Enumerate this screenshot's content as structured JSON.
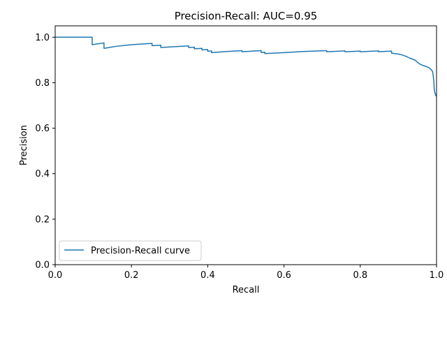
{
  "chart_data": {
    "type": "line",
    "title": "Precision-Recall: AUC=0.95",
    "xlabel": "Recall",
    "ylabel": "Precision",
    "xlim": [
      0.0,
      1.0
    ],
    "ylim": [
      0.0,
      1.05
    ],
    "xticks": [
      "0.0",
      "0.2",
      "0.4",
      "0.6",
      "0.8",
      "1.0"
    ],
    "yticks": [
      "0.0",
      "0.2",
      "0.4",
      "0.6",
      "0.8",
      "1.0"
    ],
    "grid": false,
    "legend_position": "lower-left",
    "series": [
      {
        "name": "Precision-Recall curve",
        "color": "#1f77b4",
        "step": true,
        "points": [
          [
            0.0,
            1.0
          ],
          [
            0.097,
            1.0
          ],
          [
            0.097,
            0.967
          ],
          [
            0.128,
            0.975
          ],
          [
            0.128,
            0.951
          ],
          [
            0.16,
            0.96
          ],
          [
            0.2,
            0.967
          ],
          [
            0.254,
            0.973
          ],
          [
            0.254,
            0.963
          ],
          [
            0.277,
            0.965
          ],
          [
            0.277,
            0.955
          ],
          [
            0.32,
            0.959
          ],
          [
            0.35,
            0.962
          ],
          [
            0.35,
            0.955
          ],
          [
            0.365,
            0.956
          ],
          [
            0.365,
            0.949
          ],
          [
            0.385,
            0.951
          ],
          [
            0.385,
            0.944
          ],
          [
            0.4,
            0.946
          ],
          [
            0.4,
            0.938
          ],
          [
            0.41,
            0.94
          ],
          [
            0.41,
            0.932
          ],
          [
            0.45,
            0.937
          ],
          [
            0.49,
            0.941
          ],
          [
            0.49,
            0.936
          ],
          [
            0.52,
            0.939
          ],
          [
            0.54,
            0.941
          ],
          [
            0.54,
            0.933
          ],
          [
            0.55,
            0.934
          ],
          [
            0.55,
            0.928
          ],
          [
            0.6,
            0.932
          ],
          [
            0.65,
            0.937
          ],
          [
            0.712,
            0.941
          ],
          [
            0.712,
            0.936
          ],
          [
            0.76,
            0.94
          ],
          [
            0.76,
            0.936
          ],
          [
            0.8,
            0.939
          ],
          [
            0.8,
            0.936
          ],
          [
            0.848,
            0.94
          ],
          [
            0.848,
            0.936
          ],
          [
            0.882,
            0.939
          ],
          [
            0.882,
            0.93
          ],
          [
            0.9,
            0.926
          ],
          [
            0.91,
            0.922
          ],
          [
            0.92,
            0.916
          ],
          [
            0.93,
            0.908
          ],
          [
            0.943,
            0.9
          ],
          [
            0.95,
            0.89
          ],
          [
            0.956,
            0.882
          ],
          [
            0.964,
            0.876
          ],
          [
            0.972,
            0.872
          ],
          [
            0.98,
            0.866
          ],
          [
            0.986,
            0.858
          ],
          [
            0.99,
            0.848
          ],
          [
            0.992,
            0.82
          ],
          [
            0.993,
            0.806
          ],
          [
            0.994,
            0.77
          ],
          [
            0.996,
            0.755
          ],
          [
            0.998,
            0.745
          ],
          [
            1.0,
            0.74
          ]
        ]
      }
    ]
  }
}
